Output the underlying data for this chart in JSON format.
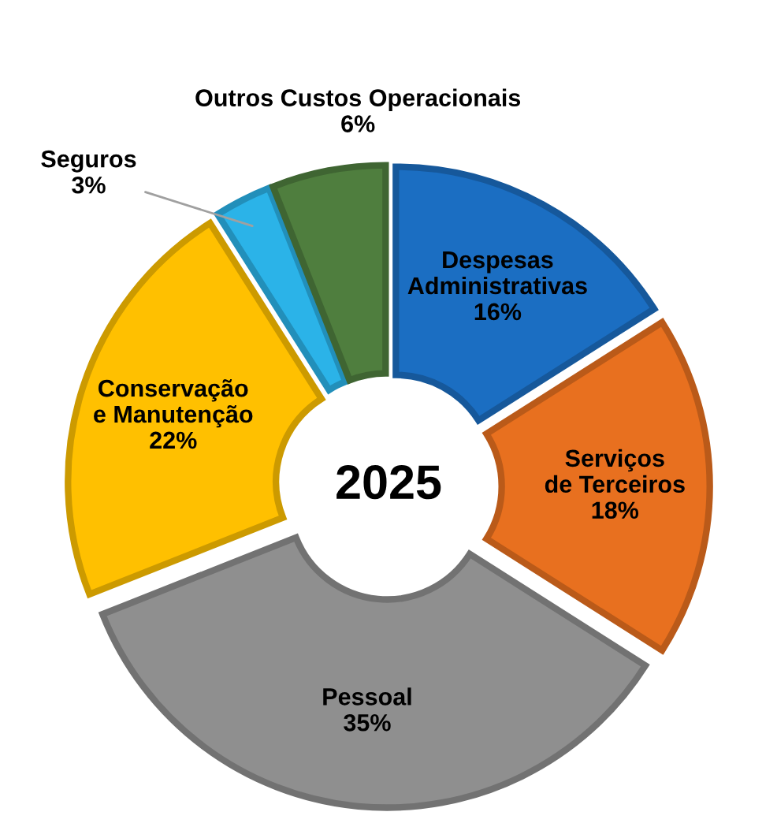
{
  "chart_data": {
    "type": "donut",
    "title": "2025",
    "categories": [
      "Despesas Administrativas",
      "Serviços de Terceiros",
      "Pessoal",
      "Conservação e Manutenção",
      "Seguros",
      "Outros Custos Operacionais"
    ],
    "values": [
      16,
      18,
      35,
      22,
      3,
      6
    ],
    "colors": [
      "#1b6ec2",
      "#e8701f",
      "#8f8f8f",
      "#ffc000",
      "#2bb3e8",
      "#4f7e3e"
    ],
    "value_labels": [
      "16%",
      "18%",
      "35%",
      "22%",
      "3%",
      "6%"
    ]
  }
}
